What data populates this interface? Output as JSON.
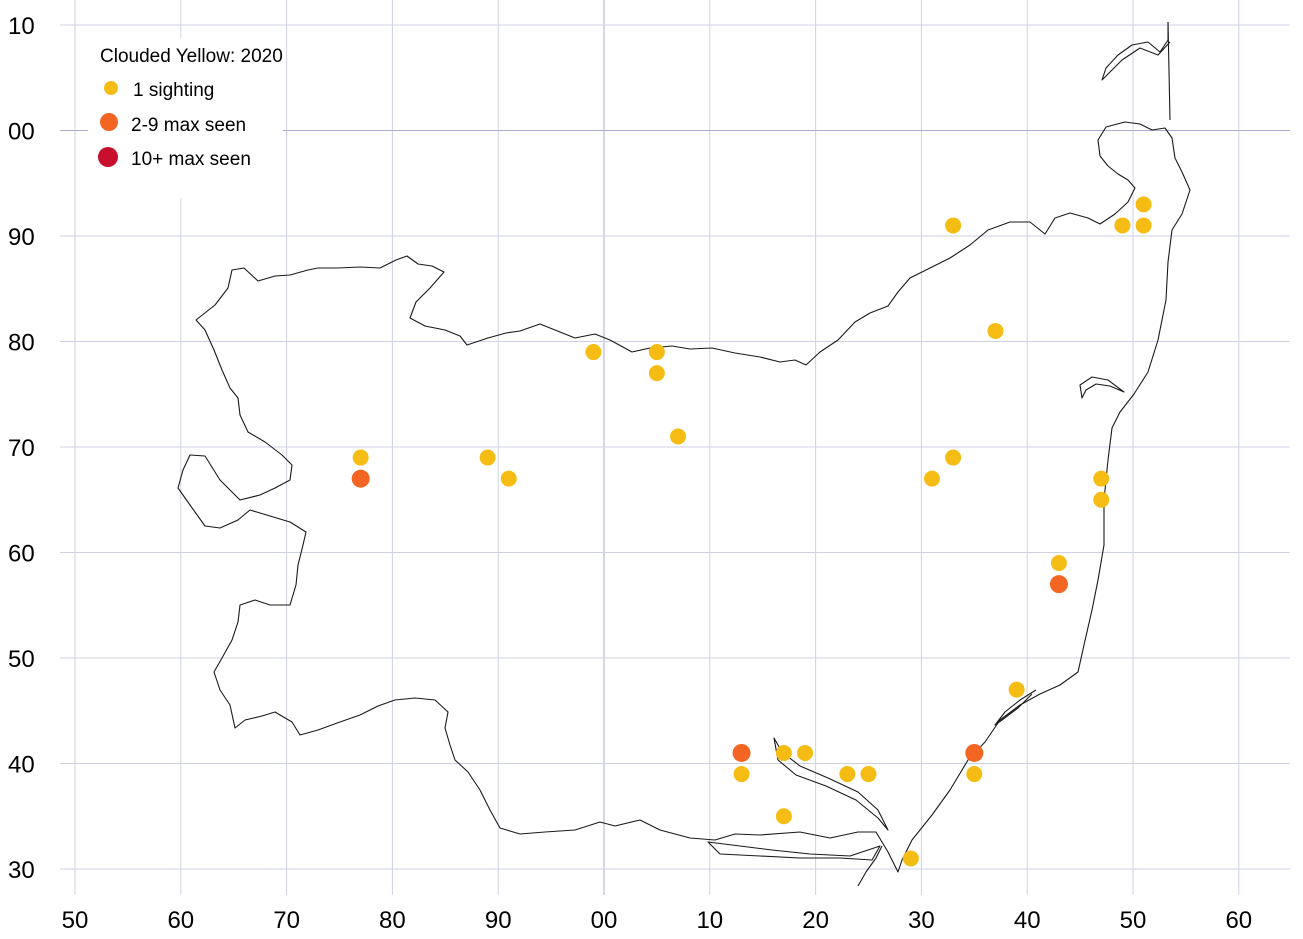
{
  "legend": {
    "title": "Clouded Yellow:  2020",
    "items": [
      {
        "label": "1 sighting",
        "color": "#f5bd14"
      },
      {
        "label": "2-9 max seen",
        "color": "#f26522"
      },
      {
        "label": "10+ max seen",
        "color": "#c8102e"
      }
    ]
  },
  "chart_data": {
    "type": "scatter",
    "x_ticks": [
      "50",
      "60",
      "70",
      "80",
      "90",
      "00",
      "10",
      "20",
      "30",
      "40",
      "50",
      "60"
    ],
    "y_ticks": [
      "10",
      "00",
      "90",
      "80",
      "70",
      "60",
      "50",
      "40",
      "30"
    ],
    "x_range": [
      50,
      165
    ],
    "y_range": [
      28,
      110
    ],
    "points": [
      {
        "x": 77,
        "y": 69,
        "cat": 1
      },
      {
        "x": 77,
        "y": 67,
        "cat": 2
      },
      {
        "x": 89,
        "y": 69,
        "cat": 1
      },
      {
        "x": 91,
        "y": 67,
        "cat": 1
      },
      {
        "x": 99,
        "y": 79,
        "cat": 1
      },
      {
        "x": 105,
        "y": 79,
        "cat": 1
      },
      {
        "x": 105,
        "y": 77,
        "cat": 1
      },
      {
        "x": 107,
        "y": 71,
        "cat": 1
      },
      {
        "x": 113,
        "y": 41,
        "cat": 2
      },
      {
        "x": 113,
        "y": 39,
        "cat": 1
      },
      {
        "x": 117,
        "y": 41,
        "cat": 1
      },
      {
        "x": 119,
        "y": 41,
        "cat": 1
      },
      {
        "x": 117,
        "y": 35,
        "cat": 1
      },
      {
        "x": 123,
        "y": 39,
        "cat": 1
      },
      {
        "x": 125,
        "y": 39,
        "cat": 1
      },
      {
        "x": 129,
        "y": 31,
        "cat": 1
      },
      {
        "x": 131,
        "y": 67,
        "cat": 1
      },
      {
        "x": 133,
        "y": 69,
        "cat": 1
      },
      {
        "x": 133,
        "y": 91,
        "cat": 1
      },
      {
        "x": 135,
        "y": 41,
        "cat": 2
      },
      {
        "x": 135,
        "y": 39,
        "cat": 1
      },
      {
        "x": 137,
        "y": 81,
        "cat": 1
      },
      {
        "x": 139,
        "y": 47,
        "cat": 1
      },
      {
        "x": 143,
        "y": 59,
        "cat": 1
      },
      {
        "x": 143,
        "y": 57,
        "cat": 2
      },
      {
        "x": 147,
        "y": 67,
        "cat": 1
      },
      {
        "x": 147,
        "y": 65,
        "cat": 1
      },
      {
        "x": 149,
        "y": 91,
        "cat": 1
      },
      {
        "x": 151,
        "y": 93,
        "cat": 1
      },
      {
        "x": 151,
        "y": 91,
        "cat": 1
      }
    ]
  }
}
